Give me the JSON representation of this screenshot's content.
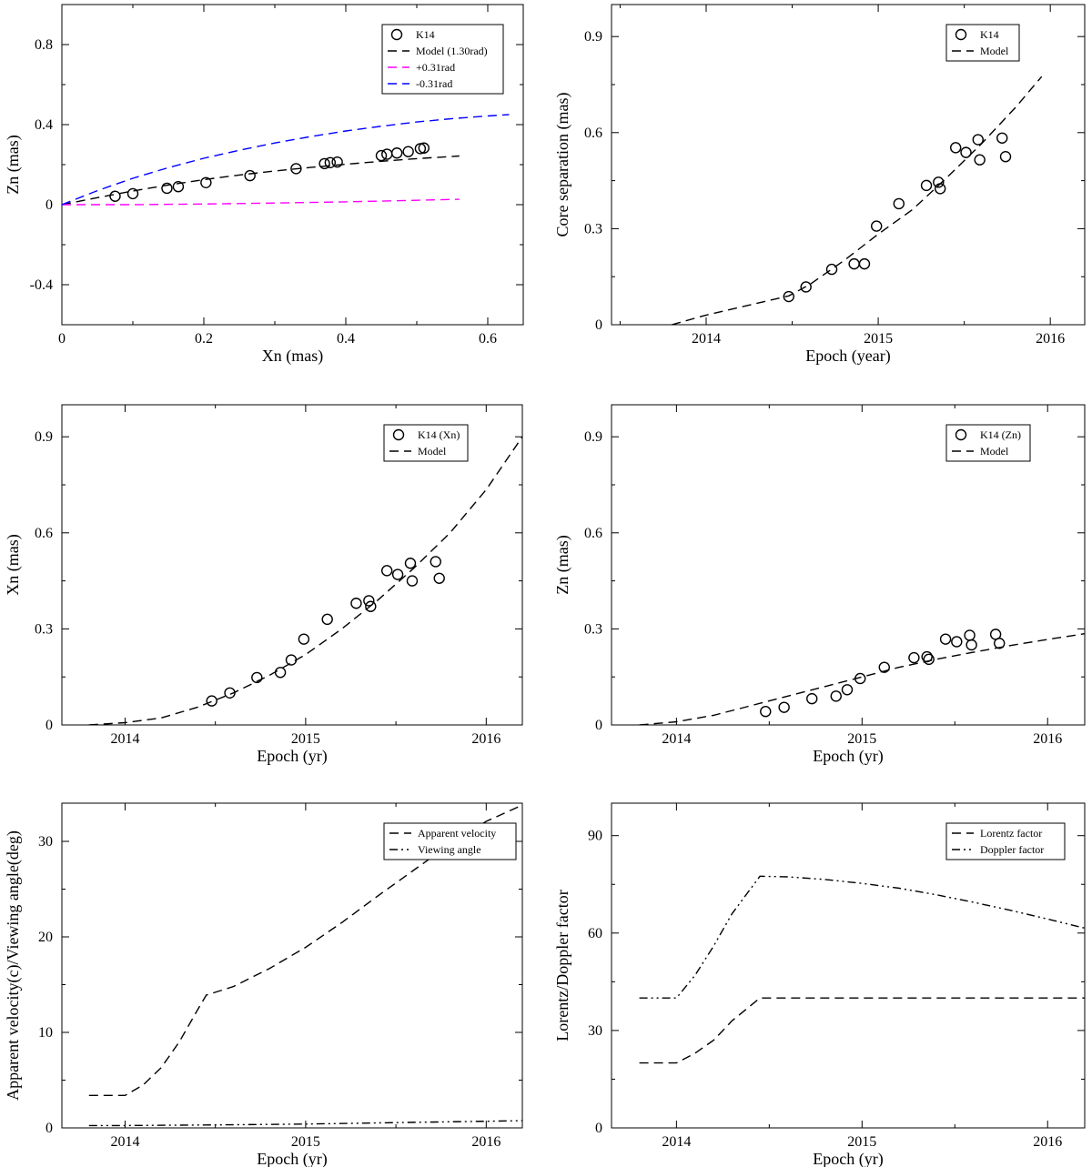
{
  "chart_data": [
    {
      "type": "scatter",
      "xlabel": "Xn (mas)",
      "ylabel": "Zn (mas)",
      "xlim": [
        0,
        0.65
      ],
      "ylim": [
        -0.6,
        1.0
      ],
      "xticks": [
        0,
        0.2,
        0.4,
        0.6
      ],
      "xtick_labels": [
        "0",
        "0.2",
        "0.4",
        "0.6"
      ],
      "yticks": [
        -0.4,
        0,
        0.4,
        0.8
      ],
      "ytick_labels": [
        "-0.4",
        "0",
        "0.4",
        "0.8"
      ],
      "legend_position": "top-right",
      "series": [
        {
          "name": "K14",
          "style": "circle",
          "color": "#000000",
          "x": [
            0.075,
            0.1,
            0.148,
            0.164,
            0.203,
            0.265,
            0.33,
            0.37,
            0.378,
            0.388,
            0.45,
            0.458,
            0.472,
            0.488,
            0.505,
            0.51
          ],
          "y": [
            0.042,
            0.055,
            0.082,
            0.09,
            0.11,
            0.145,
            0.18,
            0.205,
            0.21,
            0.213,
            0.245,
            0.252,
            0.258,
            0.265,
            0.28,
            0.283
          ]
        },
        {
          "name": "Model (1.30rad)",
          "style": "dashed",
          "color": "#000000",
          "x": [
            0,
            0.05,
            0.1,
            0.15,
            0.2,
            0.25,
            0.3,
            0.35,
            0.4,
            0.45,
            0.5,
            0.56
          ],
          "y": [
            0,
            0.035,
            0.068,
            0.098,
            0.125,
            0.148,
            0.168,
            0.186,
            0.202,
            0.217,
            0.23,
            0.243
          ]
        },
        {
          "name": "+0.31rad",
          "style": "dashed",
          "color": "#ff00ff",
          "x": [
            0,
            0.1,
            0.2,
            0.3,
            0.4,
            0.5,
            0.56
          ],
          "y": [
            0,
            0.0,
            0.003,
            0.008,
            0.014,
            0.022,
            0.027
          ]
        },
        {
          "name": "-0.31rad",
          "style": "dashed",
          "color": "#0000ff",
          "x": [
            0,
            0.05,
            0.1,
            0.15,
            0.2,
            0.25,
            0.3,
            0.35,
            0.4,
            0.45,
            0.5,
            0.55,
            0.6,
            0.63
          ],
          "y": [
            0,
            0.07,
            0.132,
            0.185,
            0.232,
            0.272,
            0.308,
            0.34,
            0.368,
            0.392,
            0.413,
            0.43,
            0.443,
            0.45
          ]
        }
      ]
    },
    {
      "type": "scatter",
      "xlabel": "Epoch (year)",
      "ylabel": "Core separation (mas)",
      "xlim": [
        2013.45,
        2016.2
      ],
      "ylim": [
        0,
        1.0
      ],
      "xticks": [
        2014,
        2015,
        2016
      ],
      "xtick_labels": [
        "2014",
        "2015",
        "2016"
      ],
      "yticks": [
        0,
        0.3,
        0.6,
        0.9
      ],
      "ytick_labels": [
        "0",
        "0.3",
        "0.6",
        "0.9"
      ],
      "legend_position": "top-right",
      "series": [
        {
          "name": "K14",
          "style": "circle",
          "color": "#000000",
          "x": [
            2014.48,
            2014.58,
            2014.73,
            2014.86,
            2014.92,
            2014.99,
            2015.12,
            2015.28,
            2015.35,
            2015.36,
            2015.45,
            2015.51,
            2015.58,
            2015.59,
            2015.72,
            2015.74
          ],
          "y": [
            0.088,
            0.118,
            0.173,
            0.19,
            0.19,
            0.308,
            0.378,
            0.435,
            0.445,
            0.425,
            0.553,
            0.538,
            0.578,
            0.515,
            0.583,
            0.525
          ]
        },
        {
          "name": "Model",
          "style": "dashed",
          "color": "#000000",
          "x": [
            2013.8,
            2014.0,
            2014.2,
            2014.48,
            2014.6,
            2014.8,
            2015.0,
            2015.2,
            2015.4,
            2015.6,
            2015.8,
            2015.95
          ],
          "y": [
            0,
            0.03,
            0.055,
            0.09,
            0.125,
            0.2,
            0.283,
            0.36,
            0.46,
            0.565,
            0.68,
            0.775
          ]
        }
      ]
    },
    {
      "type": "scatter",
      "xlabel": "Epoch (yr)",
      "ylabel": "Xn (mas)",
      "xlim": [
        2013.65,
        2016.2
      ],
      "ylim": [
        0,
        1.0
      ],
      "xticks": [
        2014,
        2015,
        2016
      ],
      "xtick_labels": [
        "2014",
        "2015",
        "2016"
      ],
      "yticks": [
        0,
        0.3,
        0.6,
        0.9
      ],
      "ytick_labels": [
        "0",
        "0.3",
        "0.6",
        "0.9"
      ],
      "legend_position": "top-right",
      "series": [
        {
          "name": "K14 (Xn)",
          "style": "circle",
          "color": "#000000",
          "x": [
            2014.48,
            2014.58,
            2014.73,
            2014.86,
            2014.92,
            2014.99,
            2015.12,
            2015.28,
            2015.35,
            2015.36,
            2015.45,
            2015.51,
            2015.58,
            2015.59,
            2015.72,
            2015.74
          ],
          "y": [
            0.075,
            0.1,
            0.148,
            0.164,
            0.203,
            0.268,
            0.33,
            0.38,
            0.388,
            0.37,
            0.482,
            0.47,
            0.505,
            0.45,
            0.51,
            0.458
          ]
        },
        {
          "name": "Model",
          "style": "dashed",
          "color": "#000000",
          "x": [
            2013.8,
            2014.0,
            2014.2,
            2014.4,
            2014.6,
            2014.8,
            2015.0,
            2015.2,
            2015.4,
            2015.6,
            2015.8,
            2016.0,
            2016.2
          ],
          "y": [
            0,
            0.007,
            0.022,
            0.055,
            0.1,
            0.155,
            0.22,
            0.3,
            0.39,
            0.49,
            0.6,
            0.735,
            0.9
          ]
        }
      ]
    },
    {
      "type": "scatter",
      "xlabel": "Epoch (yr)",
      "ylabel": "Zn (mas)",
      "xlim": [
        2013.65,
        2016.2
      ],
      "ylim": [
        0,
        1.0
      ],
      "xticks": [
        2014,
        2015,
        2016
      ],
      "xtick_labels": [
        "2014",
        "2015",
        "2016"
      ],
      "yticks": [
        0,
        0.3,
        0.6,
        0.9
      ],
      "ytick_labels": [
        "0",
        "0.3",
        "0.6",
        "0.9"
      ],
      "legend_position": "top-right",
      "series": [
        {
          "name": "K14 (Zn)",
          "style": "circle",
          "color": "#000000",
          "x": [
            2014.48,
            2014.58,
            2014.73,
            2014.86,
            2014.92,
            2014.99,
            2015.12,
            2015.28,
            2015.35,
            2015.36,
            2015.45,
            2015.51,
            2015.58,
            2015.59,
            2015.72,
            2015.74
          ],
          "y": [
            0.042,
            0.055,
            0.082,
            0.09,
            0.11,
            0.145,
            0.18,
            0.21,
            0.213,
            0.205,
            0.268,
            0.26,
            0.28,
            0.25,
            0.283,
            0.255
          ]
        },
        {
          "name": "Model",
          "style": "dashed",
          "color": "#000000",
          "x": [
            2013.8,
            2014.0,
            2014.2,
            2014.4,
            2014.6,
            2014.8,
            2015.0,
            2015.2,
            2015.4,
            2015.6,
            2015.8,
            2016.0,
            2016.2
          ],
          "y": [
            0,
            0.01,
            0.03,
            0.06,
            0.09,
            0.12,
            0.15,
            0.18,
            0.205,
            0.227,
            0.248,
            0.267,
            0.285
          ]
        }
      ]
    },
    {
      "type": "line",
      "xlabel": "Epoch (yr)",
      "ylabel": "Apparent velocity(c)/Viewing angle(deg)",
      "xlim": [
        2013.65,
        2016.2
      ],
      "ylim": [
        0,
        34
      ],
      "xticks": [
        2014,
        2015,
        2016
      ],
      "xtick_labels": [
        "2014",
        "2015",
        "2016"
      ],
      "yticks": [
        0,
        10,
        20,
        30
      ],
      "ytick_labels": [
        "0",
        "10",
        "20",
        "30"
      ],
      "legend_position": "top-right",
      "series": [
        {
          "name": "Apparent velocity",
          "style": "dashed",
          "color": "#000000",
          "x": [
            2013.8,
            2014.0,
            2014.1,
            2014.2,
            2014.3,
            2014.4,
            2014.45,
            2014.6,
            2014.8,
            2015.0,
            2015.2,
            2015.4,
            2015.6,
            2015.8,
            2016.0,
            2016.2
          ],
          "y": [
            3.4,
            3.4,
            4.5,
            6.3,
            9.0,
            12.3,
            13.9,
            14.8,
            16.7,
            18.9,
            21.5,
            24.3,
            27.0,
            29.7,
            32.1,
            33.8
          ]
        },
        {
          "name": "Viewing angle",
          "style": "dashdotdot",
          "color": "#000000",
          "x": [
            2013.8,
            2014.0,
            2014.45,
            2015.0,
            2015.5,
            2016.0,
            2016.2
          ],
          "y": [
            0.25,
            0.25,
            0.3,
            0.4,
            0.55,
            0.7,
            0.75
          ]
        }
      ]
    },
    {
      "type": "line",
      "xlabel": "Epoch (yr)",
      "ylabel": "Lorentz/Doppler factor",
      "xlim": [
        2013.65,
        2016.2
      ],
      "ylim": [
        0,
        100
      ],
      "xticks": [
        2014,
        2015,
        2016
      ],
      "xtick_labels": [
        "2014",
        "2015",
        "2016"
      ],
      "yticks": [
        0,
        30,
        60,
        90
      ],
      "ytick_labels": [
        "0",
        "30",
        "60",
        "90"
      ],
      "legend_position": "top-right",
      "series": [
        {
          "name": "Lorentz factor",
          "style": "dashed",
          "color": "#000000",
          "x": [
            2013.8,
            2014.0,
            2014.1,
            2014.2,
            2014.3,
            2014.45,
            2014.6,
            2015.0,
            2015.5,
            2016.0,
            2016.2
          ],
          "y": [
            20,
            20,
            23,
            27,
            33,
            40,
            40,
            40,
            40,
            40,
            40
          ]
        },
        {
          "name": "Doppler factor",
          "style": "dashdotdot",
          "color": "#000000",
          "x": [
            2013.8,
            2014.0,
            2014.1,
            2014.2,
            2014.3,
            2014.45,
            2014.6,
            2014.8,
            2015.0,
            2015.2,
            2015.4,
            2015.6,
            2015.8,
            2016.0,
            2016.2
          ],
          "y": [
            40,
            40,
            47,
            56,
            66,
            77.5,
            77.3,
            76.5,
            75.3,
            73.8,
            71.8,
            69.5,
            67.0,
            64.3,
            61.5
          ]
        }
      ]
    }
  ]
}
